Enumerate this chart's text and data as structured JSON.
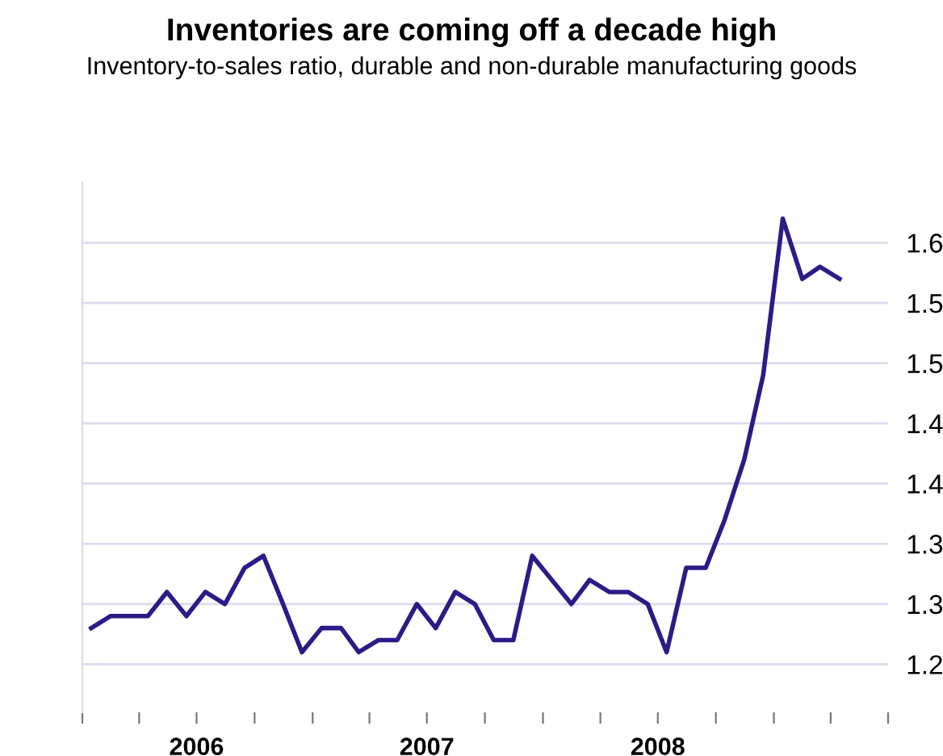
{
  "chart_data": {
    "type": "line",
    "title": "Inventories are coming off a decade high",
    "subtitle": "Inventory-to-sales ratio, durable and non-durable manufacturing goods",
    "x": [
      "2006-01-15",
      "2006-02-15",
      "2006-03-15",
      "2006-04-15",
      "2006-05-15",
      "2006-06-15",
      "2006-07-15",
      "2006-08-15",
      "2006-09-15",
      "2006-10-15",
      "2006-11-15",
      "2006-12-15",
      "2007-01-15",
      "2007-02-15",
      "2007-03-15",
      "2007-04-15",
      "2007-05-15",
      "2007-06-15",
      "2007-07-15",
      "2007-08-15",
      "2007-09-15",
      "2007-10-15",
      "2007-11-15",
      "2007-12-15",
      "2008-01-15",
      "2008-02-15",
      "2008-03-15",
      "2008-04-15",
      "2008-05-15",
      "2008-06-15",
      "2008-07-15",
      "2008-08-15",
      "2008-09-15",
      "2008-10-15",
      "2008-11-15",
      "2008-12-15",
      "2009-01-15",
      "2009-02-15",
      "2009-03-15",
      "2009-04-15"
    ],
    "series": [
      {
        "color": "#2e1a87",
        "values": [
          1.28,
          1.29,
          1.29,
          1.29,
          1.31,
          1.29,
          1.31,
          1.3,
          1.33,
          1.34,
          1.3,
          1.26,
          1.28,
          1.28,
          1.26,
          1.27,
          1.27,
          1.3,
          1.28,
          1.31,
          1.3,
          1.27,
          1.27,
          1.34,
          1.32,
          1.3,
          1.32,
          1.31,
          1.31,
          1.3,
          1.26,
          1.33,
          1.33,
          1.37,
          1.42,
          1.49,
          1.62,
          1.57,
          1.58,
          1.57
        ]
      }
    ],
    "xlim": [
      "2006-01-01",
      "2009-07-01"
    ],
    "xticks": [
      {
        "value": "2006-01-01",
        "label": null
      },
      {
        "value": "2006-04-01",
        "label": null
      },
      {
        "value": "2006-07-01",
        "label": "2006"
      },
      {
        "value": "2006-10-01",
        "label": null
      },
      {
        "value": "2007-01-01",
        "label": null
      },
      {
        "value": "2007-04-01",
        "label": null
      },
      {
        "value": "2007-07-01",
        "label": "2007"
      },
      {
        "value": "2007-10-01",
        "label": null
      },
      {
        "value": "2008-01-01",
        "label": null
      },
      {
        "value": "2008-04-01",
        "label": null
      },
      {
        "value": "2008-07-01",
        "label": "2008"
      },
      {
        "value": "2008-10-01",
        "label": null
      },
      {
        "value": "2009-01-01",
        "label": null
      },
      {
        "value": "2009-04-01",
        "label": null
      },
      {
        "value": "2009-07-01",
        "label": null
      }
    ],
    "yticks": [
      {
        "value": 1.25,
        "label": "1.2"
      },
      {
        "value": 1.3,
        "label": "1.3"
      },
      {
        "value": 1.35,
        "label": "1.3"
      },
      {
        "value": 1.4,
        "label": "1.4"
      },
      {
        "value": 1.45,
        "label": "1.4"
      },
      {
        "value": 1.5,
        "label": "1.5"
      },
      {
        "value": 1.55,
        "label": "1.5"
      },
      {
        "value": 1.6,
        "label": "1.6"
      }
    ],
    "ylim": [
      1.21,
      1.65
    ],
    "grid": "y",
    "marker": "none",
    "line_style": "solid"
  }
}
